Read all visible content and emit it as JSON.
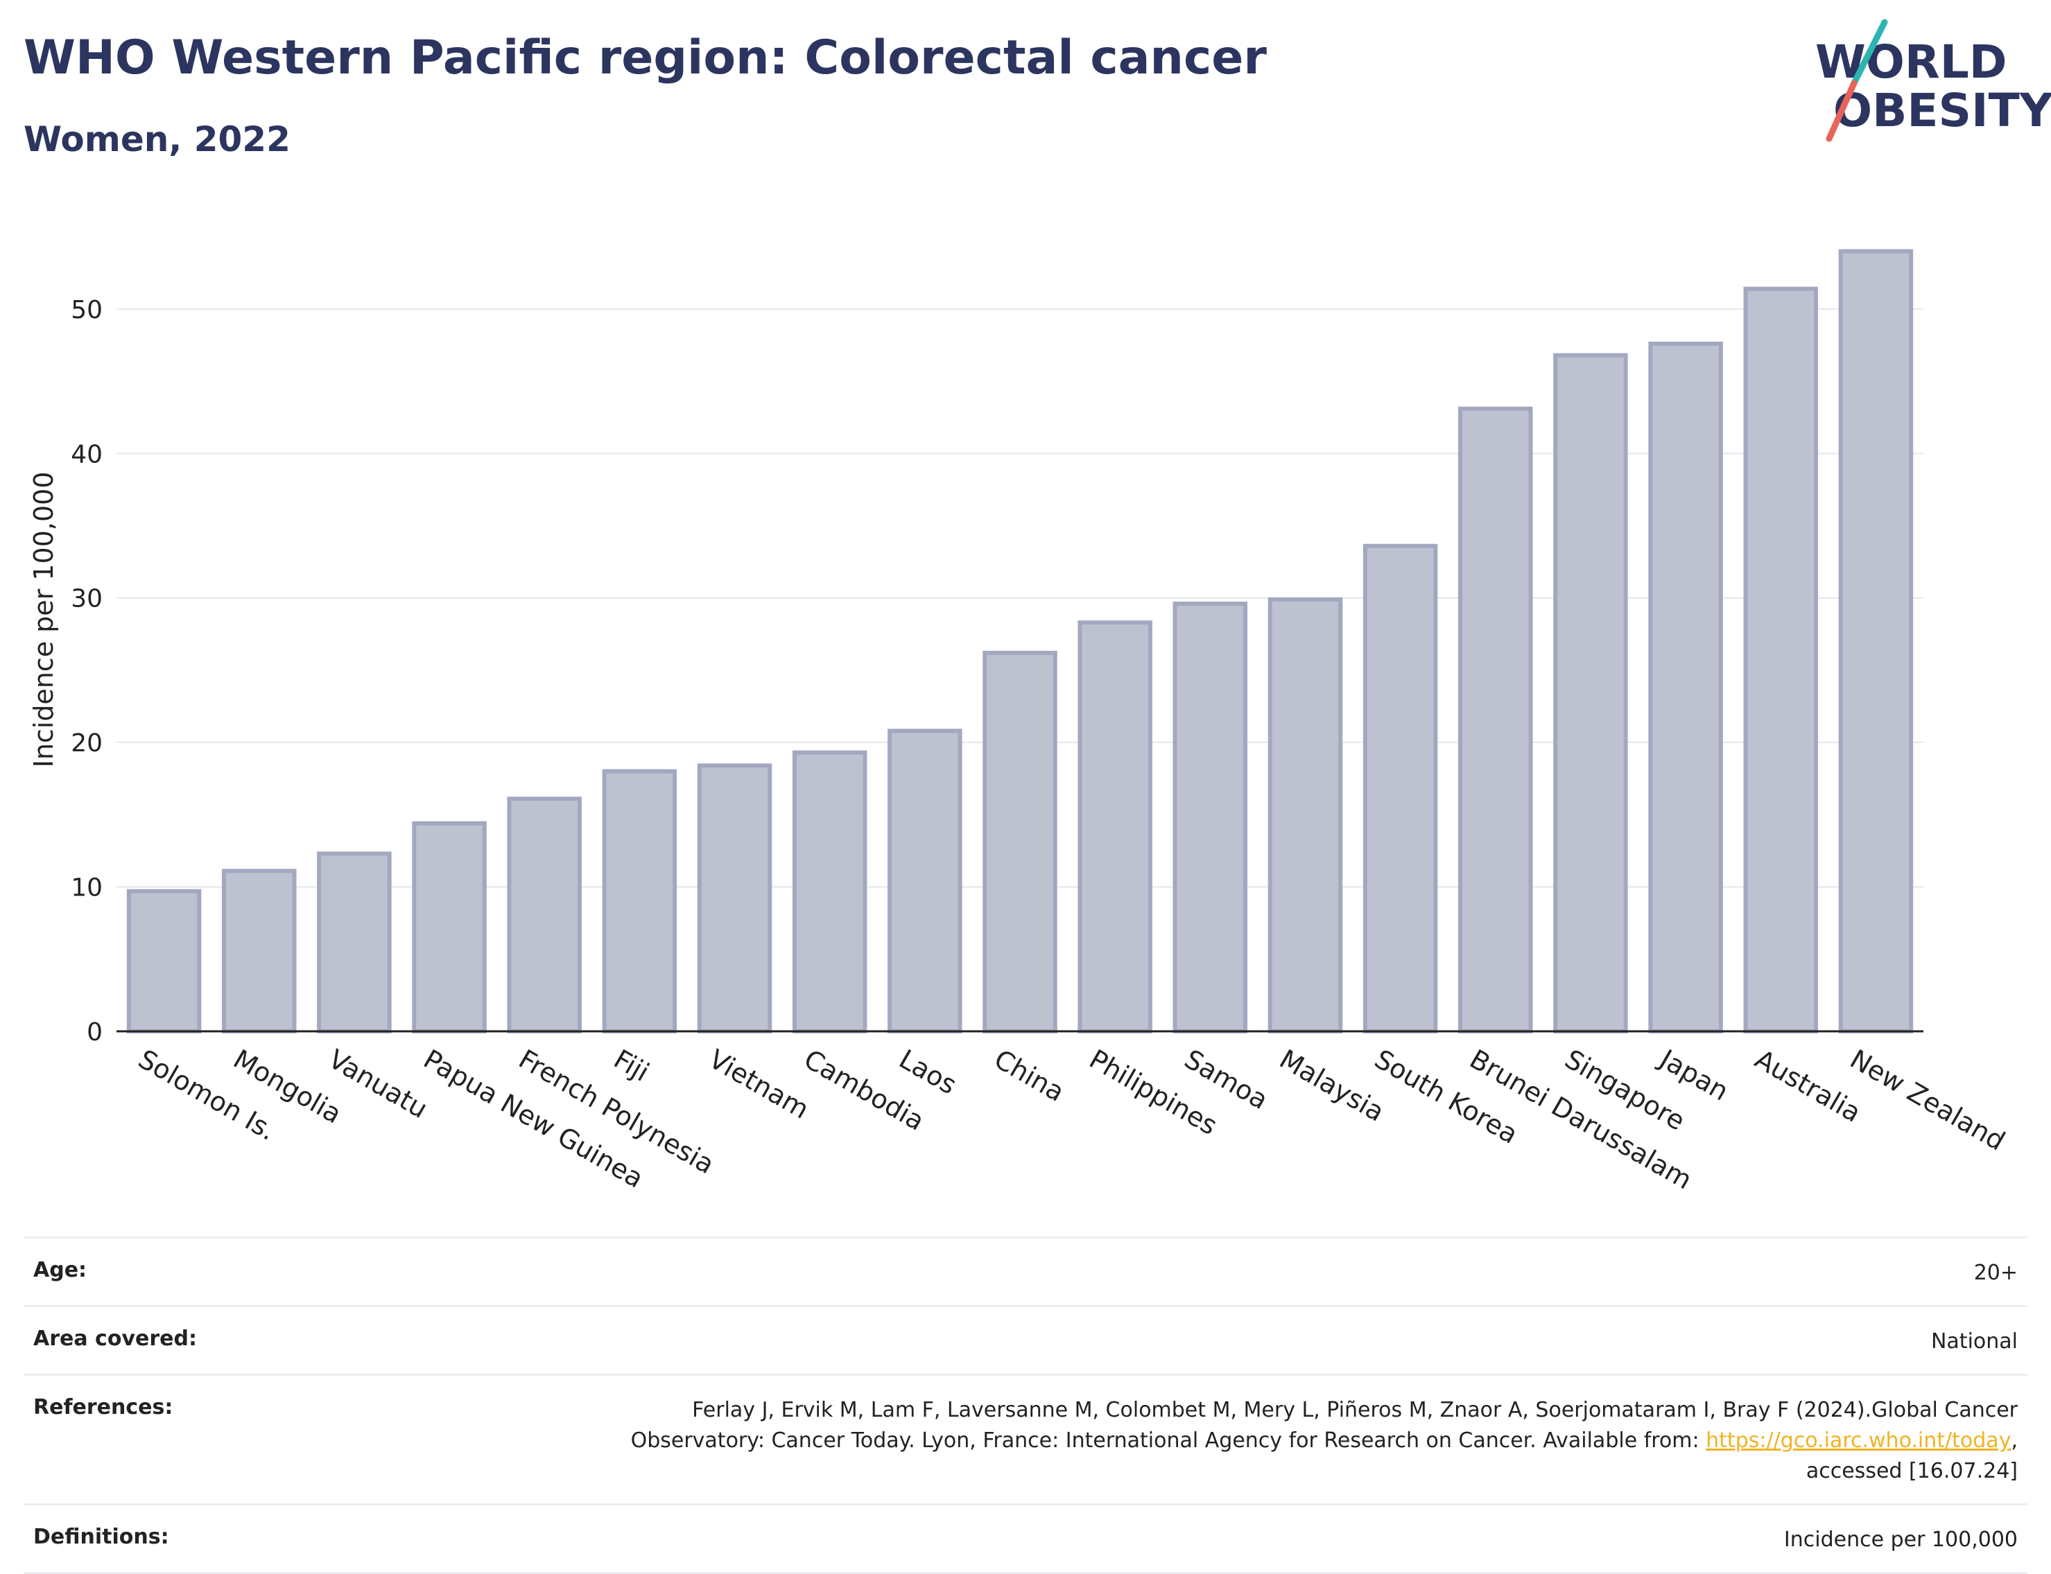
{
  "header": {
    "title": "WHO Western Pacific region: Colorectal cancer",
    "subtitle": "Women, 2022"
  },
  "logo": {
    "line1": "WORLD",
    "line2": "OBESITY"
  },
  "chart_data": {
    "type": "bar",
    "categories": [
      "Solomon Is.",
      "Mongolia",
      "Vanuatu",
      "Papua New Guinea",
      "French Polynesia",
      "Fiji",
      "Vietnam",
      "Cambodia",
      "Laos",
      "China",
      "Philippines",
      "Samoa",
      "Malaysia",
      "South Korea",
      "Brunei Darussalam",
      "Singapore",
      "Japan",
      "Australia",
      "New Zealand"
    ],
    "values": [
      9.7,
      11.1,
      12.3,
      14.4,
      16.1,
      18.0,
      18.4,
      19.3,
      20.8,
      26.2,
      28.3,
      29.6,
      29.9,
      33.6,
      43.1,
      46.8,
      47.6,
      51.4,
      54.0
    ],
    "ylabel": "Incidence per 100,000",
    "xlabel": "",
    "ylim": [
      0,
      57
    ],
    "yticks": [
      0,
      10,
      20,
      30,
      40,
      50
    ],
    "grid": true,
    "bar_color": "#bec2d0",
    "bar_edge_color": "#a3a8c0"
  },
  "meta": {
    "age_label": "Age:",
    "age_value": "20+",
    "area_label": "Area covered:",
    "area_value": "National",
    "references_label": "References:",
    "references_text_1": "Ferlay J, Ervik M, Lam F, Laversanne M, Colombet M, Mery L, Piñeros M, Znaor A, Soerjomataram I, Bray F (2024).Global Cancer",
    "references_text_2": "Observatory: Cancer Today. Lyon, France: International Agency for Research on Cancer. Available from: ",
    "references_link": "https://gco.iarc.who.int/today",
    "references_text_3": ",",
    "references_text_4": "accessed [16.07.24]",
    "definitions_label": "Definitions:",
    "definitions_value": "Incidence per 100,000"
  },
  "colors": {
    "title": "#2c355f",
    "link": "#f0b323",
    "logo_teal": "#2bb5b0",
    "logo_red": "#e8635a"
  }
}
